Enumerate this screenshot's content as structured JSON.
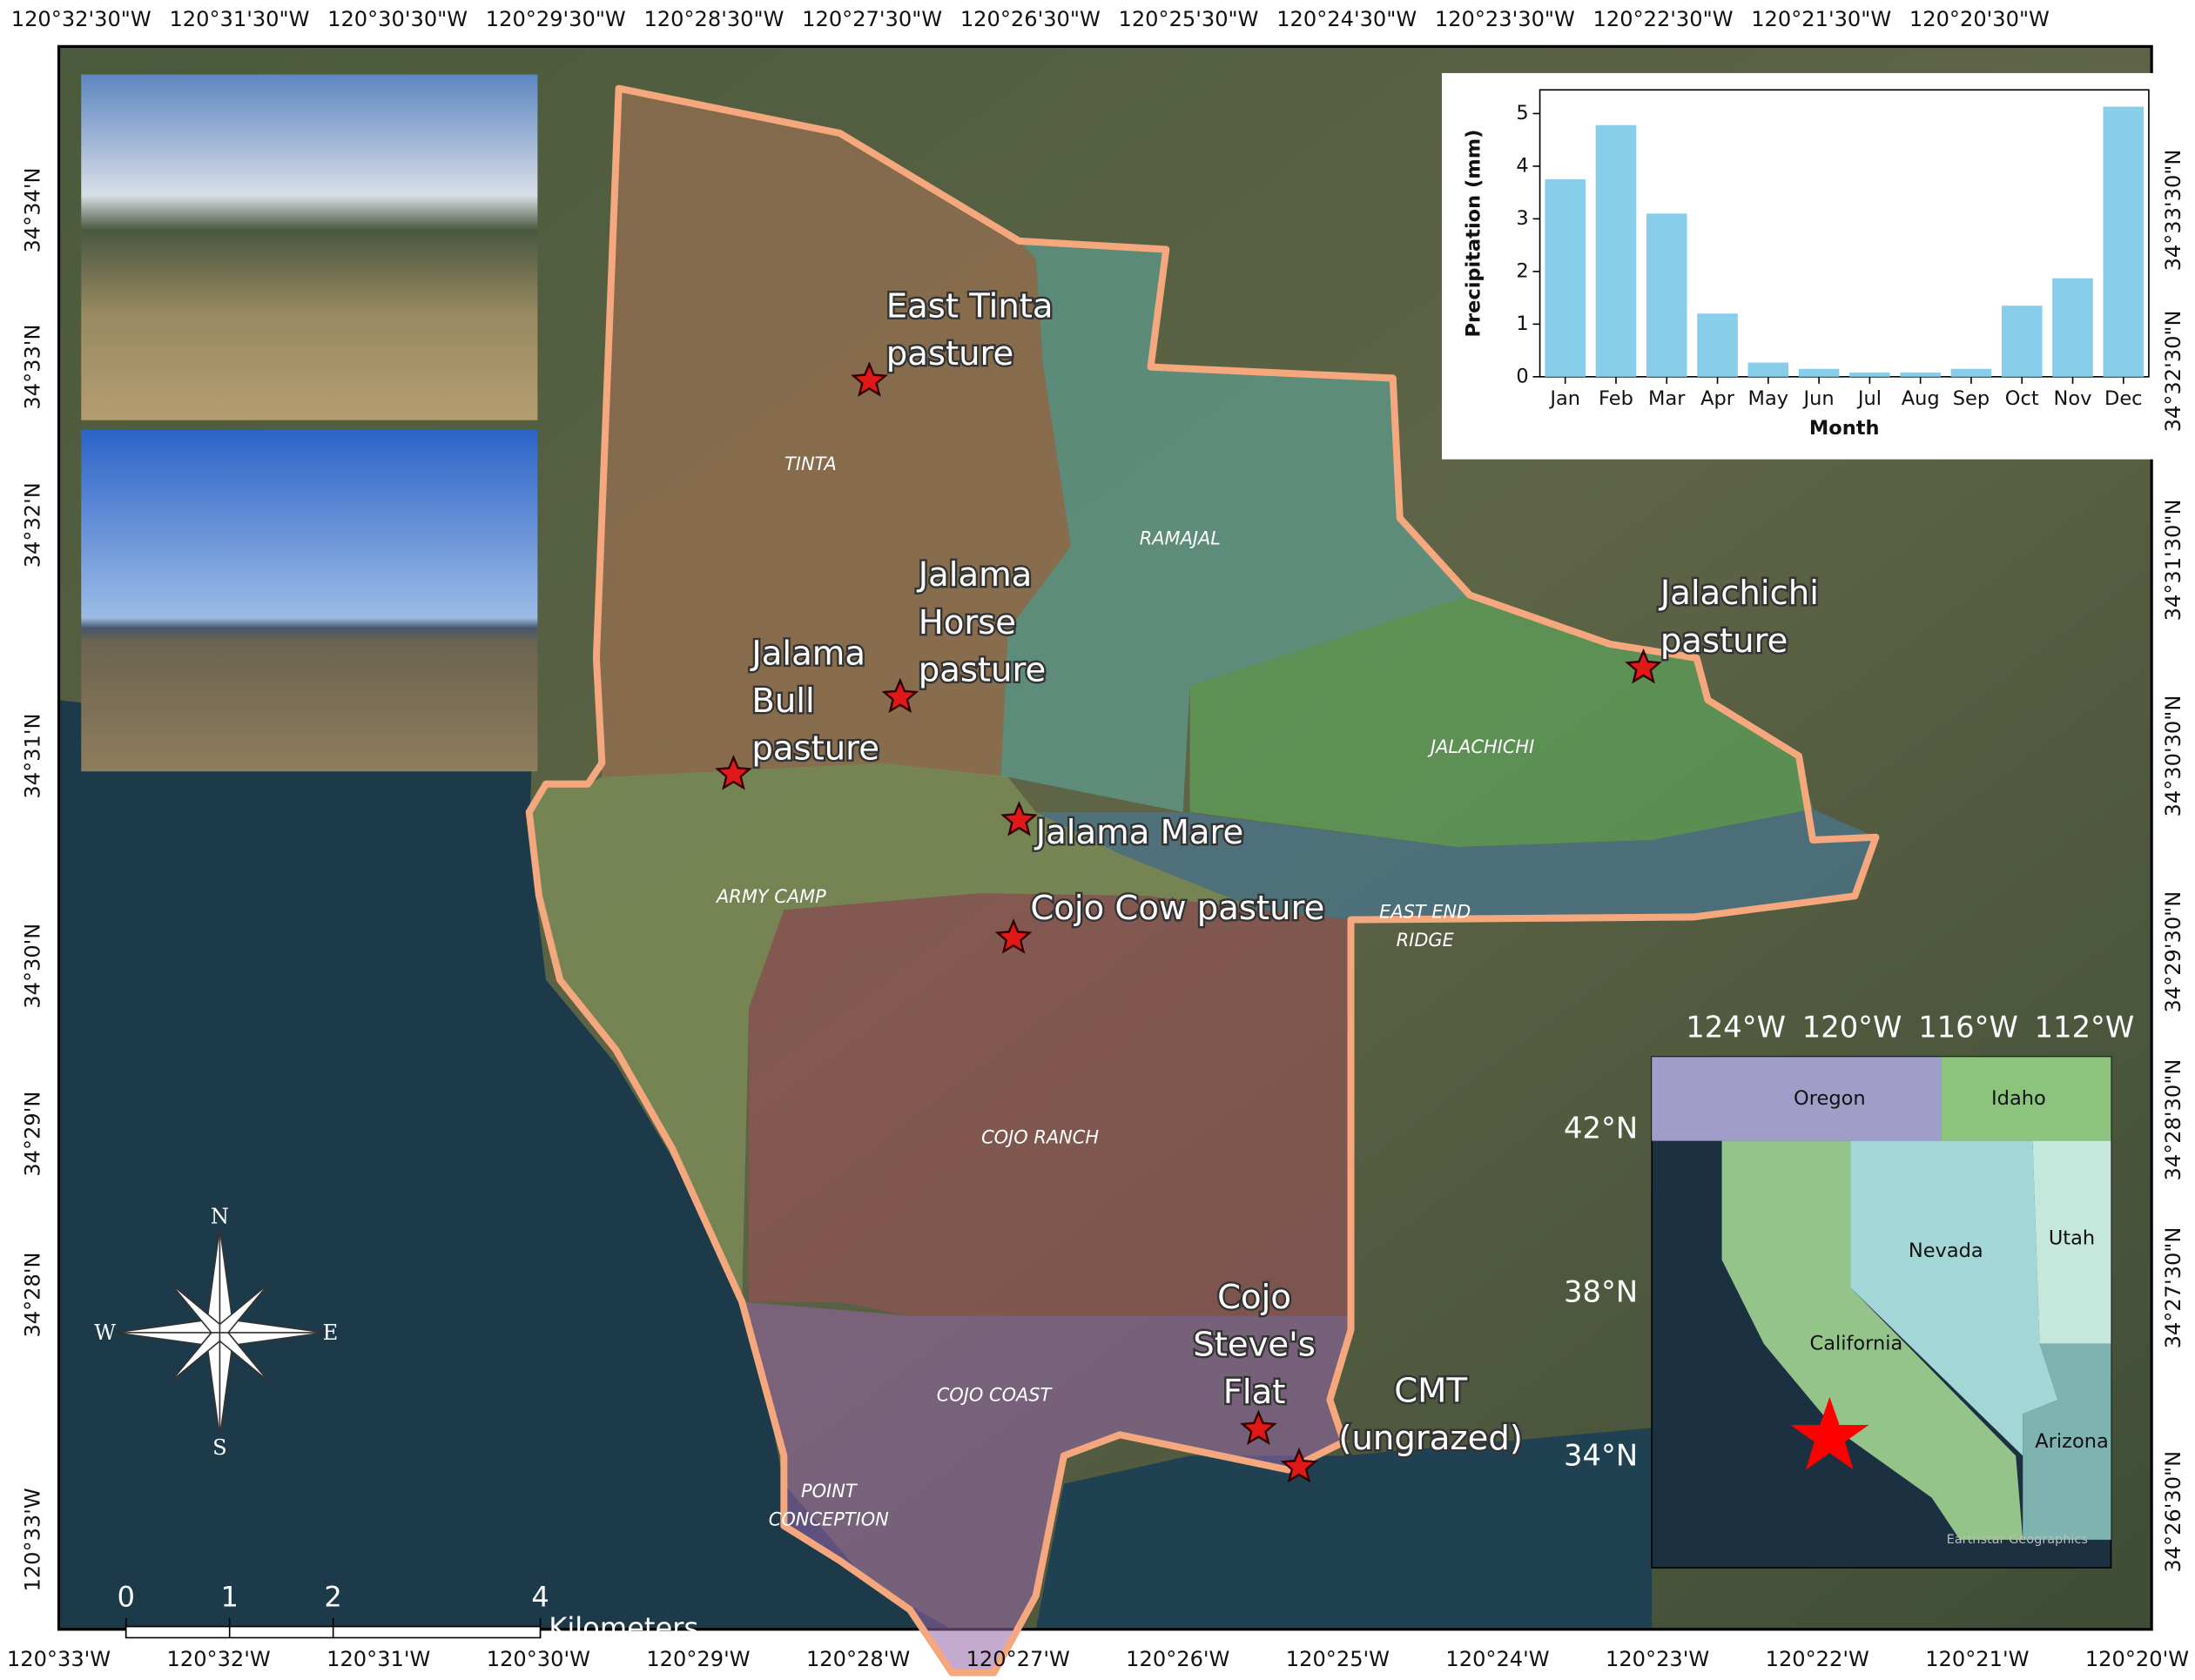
{
  "map": {
    "top_axis_labels": [
      "120°32'30\"W",
      "120°31'30\"W",
      "120°30'30\"W",
      "120°29'30\"W",
      "120°28'30\"W",
      "120°27'30\"W",
      "120°26'30\"W",
      "120°25'30\"W",
      "120°24'30\"W",
      "120°23'30\"W",
      "120°22'30\"W",
      "120°21'30\"W",
      "120°20'30\"W"
    ],
    "bottom_axis_labels": [
      "120°33'W",
      "120°32'W",
      "120°31'W",
      "120°30'W",
      "120°29'W",
      "120°28'W",
      "120°27'W",
      "120°26'W",
      "120°25'W",
      "120°24'W",
      "120°23'W",
      "120°22'W",
      "120°21'W",
      "120°20'W"
    ],
    "left_axis_labels": [
      "34°34'N",
      "34°33'N",
      "34°32'N",
      "34°31'N",
      "34°30'N",
      "34°29'N",
      "34°28'N",
      "120°33'W"
    ],
    "right_axis_labels": [
      "34°33'30\"N",
      "34°32'30\"N",
      "34°31'30\"N",
      "34°30'30\"N",
      "34°29'30\"N",
      "34°28'30\"N",
      "34°27'30\"N",
      "34°26'30\"N"
    ],
    "sites": [
      {
        "label_lines": [
          "East Tinta",
          "pasture"
        ]
      },
      {
        "label_lines": [
          "Jalama",
          "Horse",
          "pasture"
        ]
      },
      {
        "label_lines": [
          "Jalama",
          "Bull",
          "pasture"
        ]
      },
      {
        "label_lines": [
          "Jalachichi",
          "pasture"
        ]
      },
      {
        "label_lines": [
          "Jalama Mare"
        ]
      },
      {
        "label_lines": [
          "Cojo Cow pasture"
        ]
      },
      {
        "label_lines": [
          "Cojo",
          "Steve's",
          "Flat"
        ]
      },
      {
        "label_lines": [
          "CMT",
          "(ungrazed)"
        ]
      }
    ],
    "pastures": [
      {
        "label_lines": [
          "TINTA"
        ]
      },
      {
        "label_lines": [
          "RAMAJAL"
        ]
      },
      {
        "label_lines": [
          "JALACHICHI"
        ]
      },
      {
        "label_lines": [
          "ARMY CAMP"
        ]
      },
      {
        "label_lines": [
          "EAST END",
          "RIDGE"
        ]
      },
      {
        "label_lines": [
          "COJO RANCH"
        ]
      },
      {
        "label_lines": [
          "COJO COAST"
        ]
      },
      {
        "label_lines": [
          "POINT",
          "CONCEPTION"
        ]
      }
    ],
    "scale_bar": {
      "ticks": [
        0,
        1,
        2,
        4
      ],
      "unit": "Kilometers"
    },
    "compass": {
      "north": "N",
      "east": "E",
      "south": "S",
      "west": "W"
    },
    "inset": {
      "lon_labels": [
        "124°W",
        "120°W",
        "116°W",
        "112°W"
      ],
      "lat_labels": [
        "42°N",
        "38°N",
        "34°N"
      ],
      "states": [
        "Oregon",
        "Idaho",
        "Nevada",
        "Utah",
        "California",
        "Arizona"
      ],
      "credit": "Earthstar Geographics"
    }
  },
  "chart_data": {
    "type": "bar",
    "x_label": "Month",
    "y_label": "Precipitation (mm)",
    "categories": [
      "Jan",
      "Feb",
      "Mar",
      "Apr",
      "May",
      "Jun",
      "Jul",
      "Aug",
      "Sep",
      "Oct",
      "Nov",
      "Dec"
    ],
    "values": [
      3.75,
      4.78,
      3.1,
      1.2,
      0.27,
      0.15,
      0.08,
      0.08,
      0.15,
      1.35,
      1.87,
      5.13
    ],
    "color": "#87ceeb",
    "ylim": [
      0,
      5.45
    ],
    "yticks": [
      0,
      1,
      2,
      3,
      4,
      5
    ]
  }
}
